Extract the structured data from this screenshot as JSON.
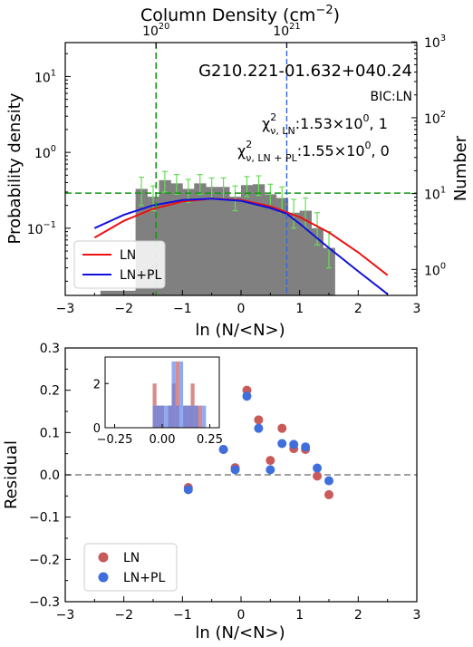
{
  "chart_data": [
    {
      "type": "bar",
      "panel": "top",
      "title": "G210.221-01.632+040.24",
      "xlabel": "ln (N/<N>)",
      "ylabel": "Probability density",
      "ylabel_right": "Number",
      "xlabel_top": "Column Density (cm",
      "xlabel_top_exp": "−2",
      "xlabel_top_close": ")",
      "xlim": [
        -3,
        3
      ],
      "ylim": [
        0.013,
        28
      ],
      "yscale": "log",
      "xticks": [
        "−3",
        "−2",
        "−1",
        "0",
        "1",
        "2",
        "3"
      ],
      "yticks_left": [
        {
          "base": "10",
          "exp": "−1",
          "v": 0.1
        },
        {
          "base": "10",
          "exp": "0",
          "v": 1
        },
        {
          "base": "10",
          "exp": "1",
          "v": 10
        }
      ],
      "yticks_right": [
        {
          "base": "10",
          "exp": "0",
          "v": 1
        },
        {
          "base": "10",
          "exp": "1",
          "v": 10
        },
        {
          "base": "10",
          "exp": "2",
          "v": 100
        },
        {
          "base": "10",
          "exp": "3",
          "v": 1000
        }
      ],
      "xticks_top": [
        {
          "base": "10",
          "exp": "20",
          "x": -1.45
        },
        {
          "base": "10",
          "exp": "21",
          "x": 0.78
        }
      ],
      "annotations": {
        "bic": "BIC:LN",
        "chi_ln_main": "χ",
        "chi_ln_sup": "2",
        "chi_ln_sub": "ν, LN",
        "chi_ln_value": ":1.53×10",
        "chi_ln_exp": "0",
        "chi_ln_tail": ", 1",
        "chi_pl_main": "χ",
        "chi_pl_sup": "2",
        "chi_pl_sub": "ν, LN + PL",
        "chi_pl_value": ":1.55×10",
        "chi_pl_exp": "0",
        "chi_pl_tail": ", 0"
      },
      "histogram": {
        "bin_width": 0.2,
        "bin_left_edges": [
          -2.4,
          -2.2,
          -2.0,
          -1.8,
          -1.6,
          -1.4,
          -1.2,
          -1.0,
          -0.8,
          -0.6,
          -0.4,
          -0.2,
          0.0,
          0.2,
          0.4,
          0.6,
          0.8,
          1.0,
          1.2,
          1.4
        ],
        "values": [
          0.015,
          0.015,
          0.015,
          0.33,
          0.26,
          0.43,
          0.39,
          0.33,
          0.39,
          0.35,
          0.35,
          0.26,
          0.37,
          0.38,
          0.28,
          0.25,
          0.16,
          0.17,
          0.1,
          0.055
        ],
        "error_low": [
          0,
          0,
          0,
          0.2,
          0.17,
          0.3,
          0.28,
          0.22,
          0.28,
          0.24,
          0.24,
          0.17,
          0.26,
          0.27,
          0.19,
          0.16,
          0.1,
          0.1,
          0.06,
          0.03
        ],
        "error_high": [
          0,
          0,
          0,
          0.47,
          0.36,
          0.56,
          0.51,
          0.44,
          0.51,
          0.46,
          0.46,
          0.36,
          0.48,
          0.49,
          0.38,
          0.35,
          0.24,
          0.25,
          0.16,
          0.09
        ],
        "color": "#808080",
        "error_color": "#66dd55"
      },
      "series": [
        {
          "name": "LN",
          "color": "#ee1111",
          "x": [
            -2.5,
            -2.0,
            -1.5,
            -1.0,
            -0.5,
            0.0,
            0.5,
            1.0,
            1.5,
            2.0,
            2.5
          ],
          "values": [
            0.075,
            0.125,
            0.18,
            0.225,
            0.245,
            0.235,
            0.195,
            0.14,
            0.088,
            0.048,
            0.024
          ]
        },
        {
          "name": "LN+PL",
          "color": "#1111dd",
          "x": [
            -2.5,
            -2.0,
            -1.5,
            -1.0,
            -0.5,
            0.0,
            0.5,
            0.78,
            1.0,
            1.5,
            2.0,
            2.5
          ],
          "values": [
            0.1,
            0.15,
            0.2,
            0.235,
            0.245,
            0.23,
            0.185,
            0.155,
            0.115,
            0.055,
            0.027,
            0.0135
          ]
        }
      ],
      "reference_lines": {
        "horizontal_green_y": 0.29,
        "vertical_green_x": -1.45,
        "vertical_blue_x": 0.78,
        "green_color": "#119911",
        "blue_color": "#3366dd"
      },
      "legend": {
        "position": "lower-left",
        "entries": [
          "LN",
          "LN+PL"
        ]
      }
    },
    {
      "type": "scatter",
      "panel": "bottom",
      "xlabel": "ln (N/<N>)",
      "ylabel": "Residual",
      "xlim": [
        -3,
        3
      ],
      "ylim": [
        -0.3,
        0.3
      ],
      "xticks": [
        "−3",
        "−2",
        "−1",
        "0",
        "1",
        "2",
        "3"
      ],
      "yticks": [
        "−0.3",
        "−0.2",
        "−0.1",
        "0.0",
        "0.1",
        "0.2",
        "0.3"
      ],
      "zero_line": true,
      "series": [
        {
          "name": "LN",
          "color": "#c85a5a",
          "x": [
            -0.9,
            -0.3,
            -0.1,
            0.1,
            0.3,
            0.5,
            0.7,
            0.9,
            1.1,
            1.3,
            1.5
          ],
          "y": [
            -0.03,
            0.06,
            0.017,
            0.2,
            0.13,
            0.034,
            0.11,
            0.062,
            0.06,
            -0.003,
            -0.047
          ]
        },
        {
          "name": "LN+PL",
          "color": "#3f6fdd",
          "x": [
            -0.9,
            -0.3,
            -0.1,
            0.1,
            0.3,
            0.5,
            0.7,
            0.9,
            1.1,
            1.3,
            1.5
          ],
          "y": [
            -0.035,
            0.06,
            0.012,
            0.186,
            0.11,
            0.012,
            0.074,
            0.072,
            0.066,
            0.016,
            -0.014
          ]
        }
      ],
      "legend": {
        "position": "lower-left",
        "entries": [
          "LN",
          "LN+PL"
        ]
      },
      "inset": {
        "type": "histogram",
        "xlim": [
          -0.3,
          0.3
        ],
        "ylim": [
          0,
          3.2
        ],
        "xticks": [
          "−0.25",
          "0.00",
          "0.25"
        ],
        "yticks": [
          "0",
          "2"
        ],
        "bin_edges": [
          -0.05,
          -0.03,
          -0.01,
          0.01,
          0.03,
          0.05,
          0.07,
          0.09,
          0.11,
          0.13,
          0.15,
          0.17,
          0.19,
          0.21,
          0.23
        ],
        "counts_LN": [
          2,
          1,
          1,
          0,
          1,
          2,
          3,
          0,
          1,
          1,
          2,
          1,
          1,
          0
        ],
        "counts_LNPL": [
          1,
          1,
          1,
          1,
          1,
          3,
          1,
          3,
          1,
          1,
          1,
          1,
          0,
          1
        ]
      }
    }
  ]
}
